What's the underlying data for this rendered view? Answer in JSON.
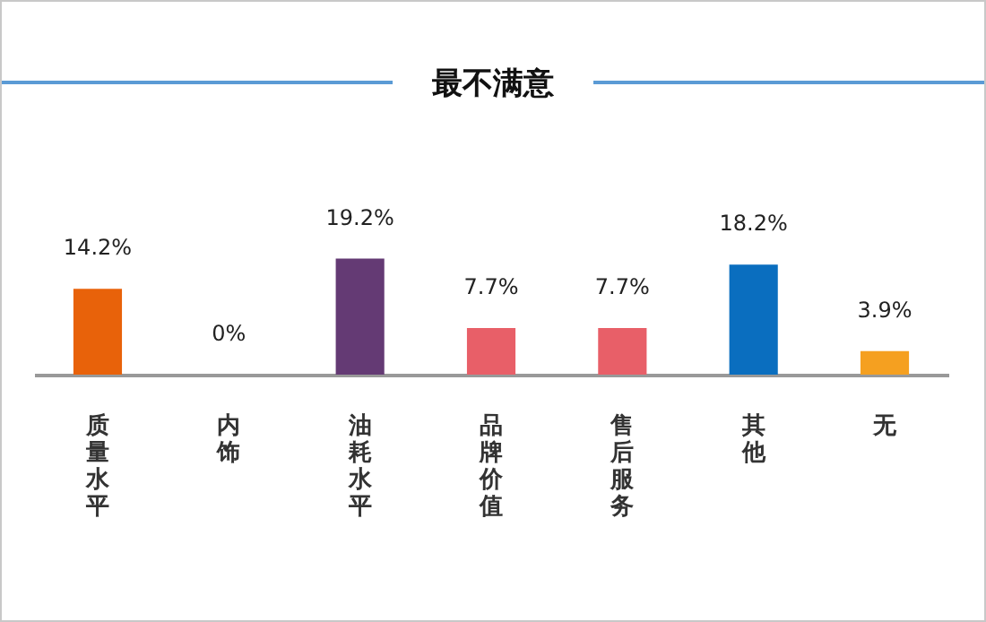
{
  "chart_data": {
    "type": "bar",
    "title": "最不满意",
    "categories": [
      "质量水平",
      "内饰",
      "油耗水平",
      "品牌价值",
      "售后服务",
      "其他",
      "无"
    ],
    "values": [
      14.2,
      0,
      19.2,
      7.7,
      7.7,
      18.2,
      3.9
    ],
    "colors": [
      "#e8620a",
      "#e8620a",
      "#643a74",
      "#e85f68",
      "#e85f68",
      "#0a6ebf",
      "#f5a020"
    ],
    "value_labels": [
      "14.2%",
      "0%",
      "19.2%",
      "7.7%",
      "7.7%",
      "18.2%",
      "3.9%"
    ],
    "grid": false,
    "legend": false
  }
}
